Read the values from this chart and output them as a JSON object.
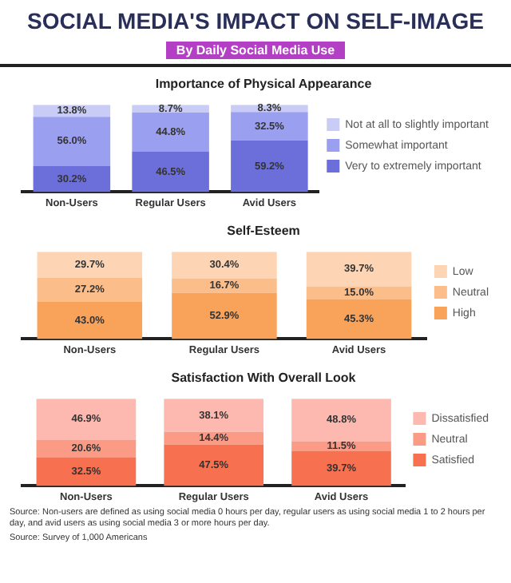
{
  "chart_data": [
    {
      "type": "other",
      "title": "SOCIAL MEDIA'S IMPACT ON SELF-IMAGE",
      "subtitle": "By Daily Social Media Use"
    },
    {
      "type": "bar",
      "stacked": true,
      "title": "Importance of Physical Appearance",
      "categories": [
        "Non-Users",
        "Regular Users",
        "Avid Users"
      ],
      "ylim": [
        0,
        100
      ],
      "tick_labels": "x",
      "grid": false,
      "legend": "right",
      "series": [
        {
          "name": "Very to extremely important",
          "color": "#6c6fd9",
          "values": [
            30.2,
            46.5,
            59.2
          ],
          "value_labels": [
            "30.2%",
            "46.5%",
            "59.2%"
          ]
        },
        {
          "name": "Somewhat important",
          "color": "#9a9ff0",
          "values": [
            56.0,
            44.8,
            32.5
          ],
          "value_labels": [
            "56.0%",
            "44.8%",
            "32.5%"
          ]
        },
        {
          "name": "Not at all to slightly important",
          "color": "#c9ccf4",
          "values": [
            13.8,
            8.7,
            8.3
          ],
          "value_labels": [
            "13.8%",
            "8.7%",
            "8.3%"
          ]
        }
      ]
    },
    {
      "type": "bar",
      "stacked": true,
      "title": "Self-Esteem",
      "categories": [
        "Non-Users",
        "Regular Users",
        "Avid Users"
      ],
      "ylim": [
        0,
        100
      ],
      "tick_labels": "x",
      "grid": false,
      "legend": "right",
      "series": [
        {
          "name": "High",
          "color": "#f9a25a",
          "values": [
            43.0,
            52.9,
            45.3
          ],
          "value_labels": [
            "43.0%",
            "52.9%",
            "45.3%"
          ]
        },
        {
          "name": "Neutral",
          "color": "#fbbd8a",
          "values": [
            27.2,
            16.7,
            15.0
          ],
          "value_labels": [
            "27.2%",
            "16.7%",
            "15.0%"
          ]
        },
        {
          "name": "Low",
          "color": "#fdd5b5",
          "values": [
            29.7,
            30.4,
            39.7
          ],
          "value_labels": [
            "29.7%",
            "30.4%",
            "39.7%"
          ]
        }
      ]
    },
    {
      "type": "bar",
      "stacked": true,
      "title": "Satisfaction With Overall Look",
      "categories": [
        "Non-Users",
        "Regular Users",
        "Avid Users"
      ],
      "ylim": [
        0,
        100
      ],
      "tick_labels": "x",
      "grid": false,
      "legend": "right",
      "series": [
        {
          "name": "Satisfied",
          "color": "#f7704f",
          "values": [
            32.5,
            47.5,
            39.7
          ],
          "value_labels": [
            "32.5%",
            "47.5%",
            "39.7%"
          ]
        },
        {
          "name": "Neutral",
          "color": "#fb9a85",
          "values": [
            20.6,
            14.4,
            11.5
          ],
          "value_labels": [
            "20.6%",
            "14.4%",
            "11.5%"
          ]
        },
        {
          "name": "Dissatisfied",
          "color": "#fdb8b0",
          "values": [
            46.9,
            38.1,
            48.8
          ],
          "value_labels": [
            "46.9%",
            "38.1%",
            "48.8%"
          ]
        }
      ],
      "annotations": [
        "Source: Non-users are defined as using social media 0 hours per day, regular users as using social media 1 to 2 hours per day, and avid users as using social media 3 or more hours per day.",
        "Source: Survey of 1,000 Americans"
      ]
    }
  ]
}
